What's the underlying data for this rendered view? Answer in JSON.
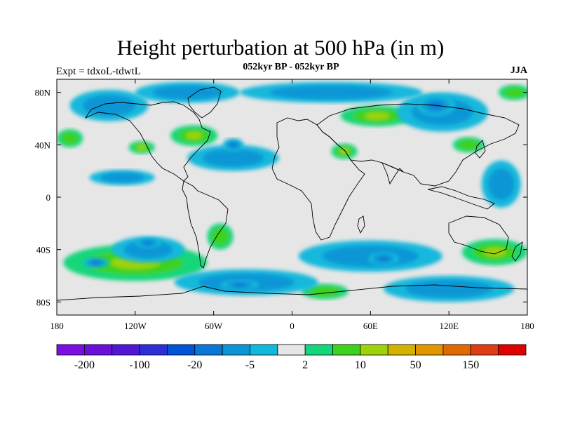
{
  "title": "Height perturbation at 500 hPa (in m)",
  "subtitle": "052kyr BP - 052kyr BP",
  "left_label": "Expt = tdxoL-tdwtL",
  "right_label": "JJA",
  "map": {
    "lon_range": [
      -180,
      180
    ],
    "lat_range": [
      -90,
      90
    ],
    "x_ticks": [
      {
        "lon": -180,
        "label": "180"
      },
      {
        "lon": -120,
        "label": "120W"
      },
      {
        "lon": -60,
        "label": "60W"
      },
      {
        "lon": 0,
        "label": "0"
      },
      {
        "lon": 60,
        "label": "60E"
      },
      {
        "lon": 120,
        "label": "120E"
      },
      {
        "lon": 180,
        "label": "180"
      }
    ],
    "y_ticks": [
      {
        "lat": 80,
        "label": "80N"
      },
      {
        "lat": 40,
        "label": "40N"
      },
      {
        "lat": 0,
        "label": "0"
      },
      {
        "lat": -40,
        "label": "40S"
      },
      {
        "lat": -80,
        "label": "80S"
      }
    ],
    "background_color": "#e6e6e6"
  },
  "colorbar": {
    "colors": [
      "#7b0fe0",
      "#6a10d8",
      "#5216d6",
      "#2d2fd6",
      "#0054d6",
      "#0a76d6",
      "#0a96d6",
      "#12b8dc",
      "#e6e6e6",
      "#14d67a",
      "#3cd21e",
      "#a0d20a",
      "#d2b400",
      "#e09600",
      "#e06a00",
      "#e03c14",
      "#e00000"
    ],
    "labels": [
      {
        "after_box": 1,
        "label": "-200"
      },
      {
        "after_box": 3,
        "label": "-100"
      },
      {
        "after_box": 5,
        "label": "-20"
      },
      {
        "after_box": 7,
        "label": "-5"
      },
      {
        "after_box": 9,
        "label": "2"
      },
      {
        "after_box": 11,
        "label": "10"
      },
      {
        "after_box": 13,
        "label": "50"
      },
      {
        "after_box": 15,
        "label": "150"
      }
    ]
  },
  "anomalies": [
    {
      "lon": -120,
      "lat": -50,
      "rx": 55,
      "ry": 14,
      "value": "+",
      "level": "positive-strong"
    },
    {
      "lon": 155,
      "lat": -42,
      "rx": 25,
      "ry": 10,
      "value": "+",
      "level": "positive-strong"
    },
    {
      "lon": 65,
      "lat": 62,
      "rx": 28,
      "ry": 8,
      "value": "+",
      "level": "positive-strong"
    },
    {
      "lon": -75,
      "lat": 47,
      "rx": 18,
      "ry": 8,
      "value": "+",
      "level": "positive-strong"
    },
    {
      "lon": -115,
      "lat": 38,
      "rx": 10,
      "ry": 5,
      "value": "+",
      "level": "positive-strong"
    },
    {
      "lon": 40,
      "lat": 35,
      "rx": 10,
      "ry": 6,
      "value": "+",
      "level": "positive-strong"
    },
    {
      "lon": 135,
      "lat": 40,
      "rx": 12,
      "ry": 6,
      "value": "+",
      "level": "positive"
    },
    {
      "lon": 25,
      "lat": -72,
      "rx": 18,
      "ry": 6,
      "value": "+",
      "level": "positive"
    },
    {
      "lon": -55,
      "lat": -30,
      "rx": 10,
      "ry": 10,
      "value": "+",
      "level": "positive"
    },
    {
      "lon": -170,
      "lat": 45,
      "rx": 10,
      "ry": 7,
      "value": "+",
      "level": "positive"
    },
    {
      "lon": 170,
      "lat": 80,
      "rx": 12,
      "ry": 6,
      "value": "+",
      "level": "positive"
    },
    {
      "lon": -45,
      "lat": 30,
      "rx": 35,
      "ry": 10,
      "value": "-",
      "level": "negative"
    },
    {
      "lon": -45,
      "lat": 40,
      "rx": 8,
      "ry": 5,
      "value": "-",
      "level": "negative-strong"
    },
    {
      "lon": 115,
      "lat": 65,
      "rx": 35,
      "ry": 15,
      "value": "-",
      "level": "negative"
    },
    {
      "lon": 110,
      "lat": 70,
      "rx": 15,
      "ry": 8,
      "value": "-",
      "level": "negative-strong"
    },
    {
      "lon": -110,
      "lat": -40,
      "rx": 28,
      "ry": 10,
      "value": "-",
      "level": "negative"
    },
    {
      "lon": -110,
      "lat": -35,
      "rx": 10,
      "ry": 4,
      "value": "-",
      "level": "negative-strong"
    },
    {
      "lon": -150,
      "lat": -50,
      "rx": 10,
      "ry": 4,
      "value": "-",
      "level": "negative-strong"
    },
    {
      "lon": 60,
      "lat": -45,
      "rx": 55,
      "ry": 12,
      "value": "-",
      "level": "negative"
    },
    {
      "lon": 70,
      "lat": -47,
      "rx": 12,
      "ry": 5,
      "value": "-",
      "level": "negative-strong"
    },
    {
      "lon": -35,
      "lat": -65,
      "rx": 55,
      "ry": 10,
      "value": "-",
      "level": "negative"
    },
    {
      "lon": -40,
      "lat": -67,
      "rx": 15,
      "ry": 4,
      "value": "-",
      "level": "negative-strong"
    },
    {
      "lon": 30,
      "lat": 80,
      "rx": 70,
      "ry": 8,
      "value": "-",
      "level": "negative"
    },
    {
      "lon": -80,
      "lat": 80,
      "rx": 40,
      "ry": 8,
      "value": "-",
      "level": "negative"
    },
    {
      "lon": 160,
      "lat": 10,
      "rx": 15,
      "ry": 18,
      "value": "-",
      "level": "negative"
    },
    {
      "lon": -140,
      "lat": 70,
      "rx": 30,
      "ry": 12,
      "value": "-",
      "level": "negative"
    },
    {
      "lon": 120,
      "lat": -70,
      "rx": 50,
      "ry": 10,
      "value": "-",
      "level": "negative"
    },
    {
      "lon": -130,
      "lat": 15,
      "rx": 25,
      "ry": 6,
      "value": "-",
      "level": "negative"
    }
  ]
}
